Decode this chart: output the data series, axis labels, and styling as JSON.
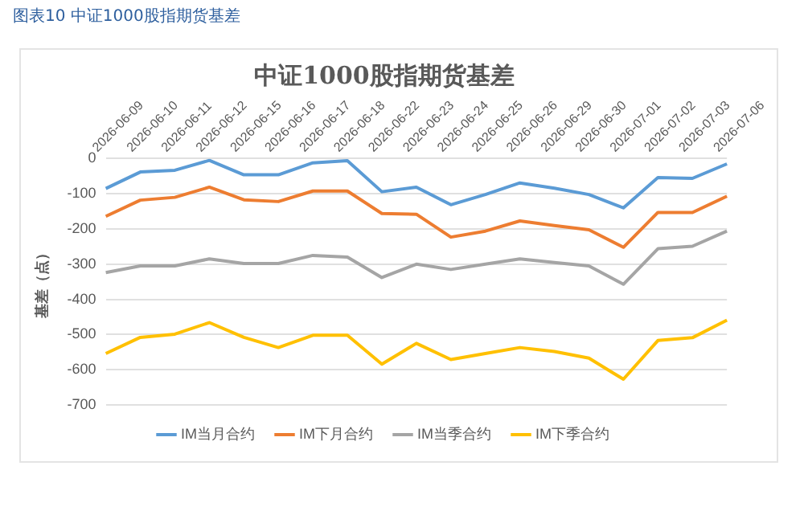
{
  "chart_data": {
    "type": "line",
    "title": "中证1000股指期货基差",
    "ylabel": "基差（点）",
    "annotations": [
      "图表10 中证1000股指期货基差"
    ],
    "categories": [
      "2026-06-09",
      "2026-06-10",
      "2026-06-11",
      "2026-06-12",
      "2026-06-15",
      "2026-06-16",
      "2026-06-17",
      "2026-06-18",
      "2026-06-22",
      "2026-06-23",
      "2026-06-24",
      "2026-06-25",
      "2026-06-26",
      "2026-06-29",
      "2026-06-30",
      "2026-07-01",
      "2026-07-02",
      "2026-07-03",
      "2026-07-06"
    ],
    "series": [
      {
        "name": "IM当月合约",
        "color": "#5b9bd5",
        "values": [
          -85,
          -38,
          -33,
          -5,
          -46,
          -46,
          -12,
          -6,
          -94,
          -81,
          -131,
          -102,
          -69,
          -84,
          -102,
          -140,
          -54,
          -56,
          -15
        ]
      },
      {
        "name": "IM下月合约",
        "color": "#ed7d31",
        "values": [
          -164,
          -118,
          -110,
          -81,
          -117,
          -122,
          -92,
          -92,
          -156,
          -158,
          -223,
          -206,
          -177,
          -190,
          -202,
          -252,
          -153,
          -153,
          -107
        ]
      },
      {
        "name": "IM当季合约",
        "color": "#a5a5a5",
        "values": [
          -324,
          -305,
          -305,
          -285,
          -298,
          -298,
          -275,
          -280,
          -338,
          -300,
          -315,
          -300,
          -285,
          -295,
          -305,
          -357,
          -256,
          -249,
          -206
        ]
      },
      {
        "name": "IM下季合约",
        "color": "#ffc000",
        "values": [
          -554,
          -508,
          -499,
          -466,
          -508,
          -537,
          -502,
          -502,
          -584,
          -525,
          -571,
          -554,
          -537,
          -548,
          -567,
          -627,
          -517,
          -509,
          -459
        ]
      }
    ],
    "ylim": [
      -700,
      0
    ],
    "yticks": [
      0,
      -100,
      -200,
      -300,
      -400,
      -500,
      -600,
      -700
    ],
    "grid": "y",
    "legend": "bottom",
    "marker": "none",
    "line_style": "solid"
  }
}
